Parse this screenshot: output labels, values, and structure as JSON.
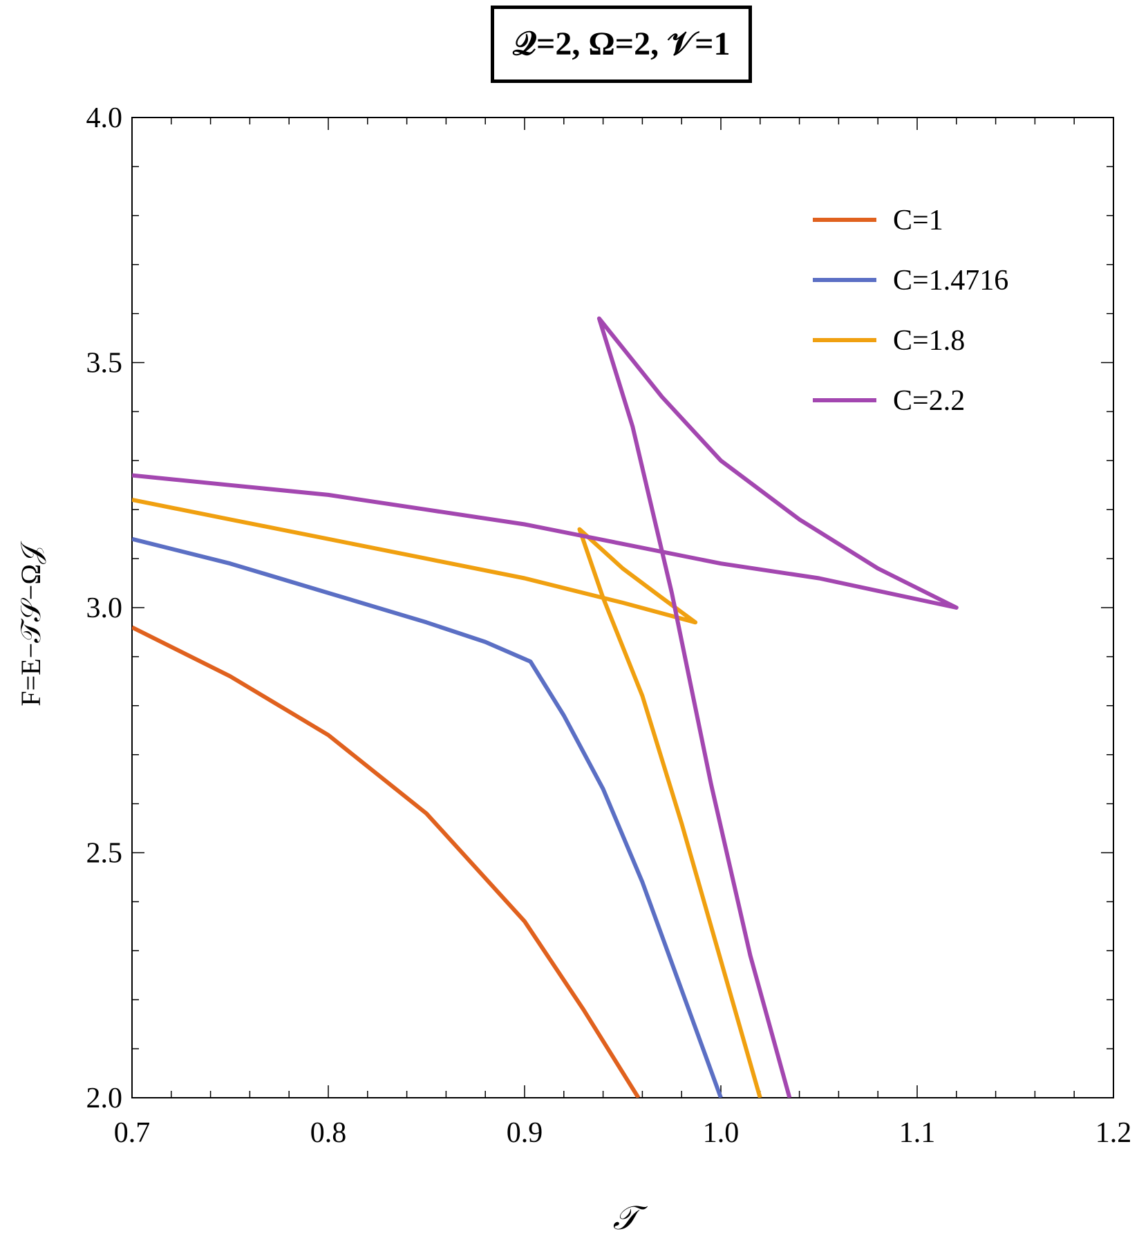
{
  "chart_data": {
    "type": "line",
    "title": "Q=2, Ω=2, V=1",
    "title_display": "𝒬=2, Ω=2, 𝒱=1",
    "xlabel": "𝒯",
    "ylabel": "F=E−𝒯𝒮−Ω𝒥",
    "xlim": [
      0.7,
      1.2
    ],
    "ylim": [
      2.0,
      4.0
    ],
    "xticks": [
      0.7,
      0.8,
      0.9,
      1.0,
      1.1,
      1.2
    ],
    "xtick_labels": [
      "0.7",
      "0.8",
      "0.9",
      "1.0",
      "1.1",
      "1.2"
    ],
    "yticks": [
      2.0,
      2.5,
      3.0,
      3.5,
      4.0
    ],
    "ytick_labels": [
      "2.0",
      "2.5",
      "3.0",
      "3.5",
      "4.0"
    ],
    "grid": false,
    "legend_position": "top-right",
    "series": [
      {
        "name": "C=1",
        "color": "#E0611E",
        "x": [
          0.7,
          0.75,
          0.8,
          0.85,
          0.9,
          0.93,
          0.958
        ],
        "y": [
          2.96,
          2.86,
          2.74,
          2.58,
          2.36,
          2.18,
          2.0
        ]
      },
      {
        "name": "C=1.4716",
        "color": "#5B6FC4",
        "x": [
          0.7,
          0.75,
          0.8,
          0.85,
          0.88,
          0.903,
          0.92,
          0.94,
          0.96,
          0.98,
          1.0
        ],
        "y": [
          3.14,
          3.09,
          3.03,
          2.97,
          2.93,
          2.89,
          2.78,
          2.63,
          2.44,
          2.22,
          2.0
        ]
      },
      {
        "name": "C=1.8",
        "color": "#F0A010",
        "x": [
          0.7,
          0.75,
          0.8,
          0.85,
          0.9,
          0.95,
          0.987,
          0.97,
          0.95,
          0.928,
          0.94,
          0.96,
          0.98,
          1.0,
          1.02
        ],
        "y": [
          3.22,
          3.18,
          3.14,
          3.1,
          3.06,
          3.01,
          2.97,
          3.02,
          3.08,
          3.16,
          3.02,
          2.82,
          2.56,
          2.28,
          2.0
        ]
      },
      {
        "name": "C=2.2",
        "color": "#A347B0",
        "x": [
          0.7,
          0.75,
          0.8,
          0.85,
          0.9,
          0.95,
          1.0,
          1.05,
          1.12,
          1.08,
          1.04,
          1.0,
          0.97,
          0.938,
          0.955,
          0.975,
          0.995,
          1.015,
          1.035
        ],
        "y": [
          3.27,
          3.25,
          3.23,
          3.2,
          3.17,
          3.13,
          3.09,
          3.06,
          3.0,
          3.08,
          3.18,
          3.3,
          3.43,
          3.59,
          3.37,
          3.03,
          2.64,
          2.29,
          2.0
        ]
      }
    ]
  }
}
